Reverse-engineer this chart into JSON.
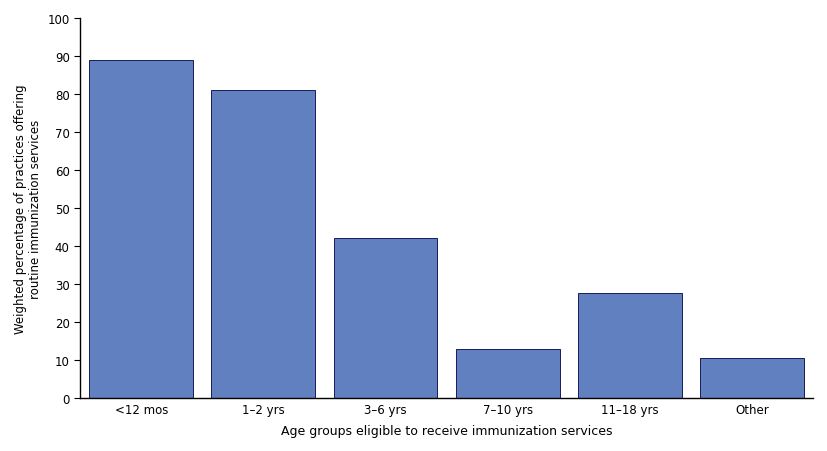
{
  "categories": [
    "<12 mos",
    "1–2 yrs",
    "3–6 yrs",
    "7–10 yrs",
    "11–18 yrs",
    "Other"
  ],
  "values": [
    89,
    81,
    42,
    13,
    27.5,
    10.5
  ],
  "bar_color": "#6080c0",
  "bar_edgecolor": "#1a1a5a",
  "ylabel": "Weighted percentage of practices offering\nroutine immunization services",
  "xlabel": "Age groups eligible to receive immunization services",
  "ylim": [
    0,
    100
  ],
  "yticks": [
    0,
    10,
    20,
    30,
    40,
    50,
    60,
    70,
    80,
    90,
    100
  ],
  "background_color": "#ffffff",
  "tick_label_color": "#000000",
  "bar_width": 0.85,
  "ylabel_fontsize": 8.5,
  "xlabel_fontsize": 9,
  "tick_fontsize": 8.5,
  "figure_width": 8.27,
  "figure_height": 4.52
}
